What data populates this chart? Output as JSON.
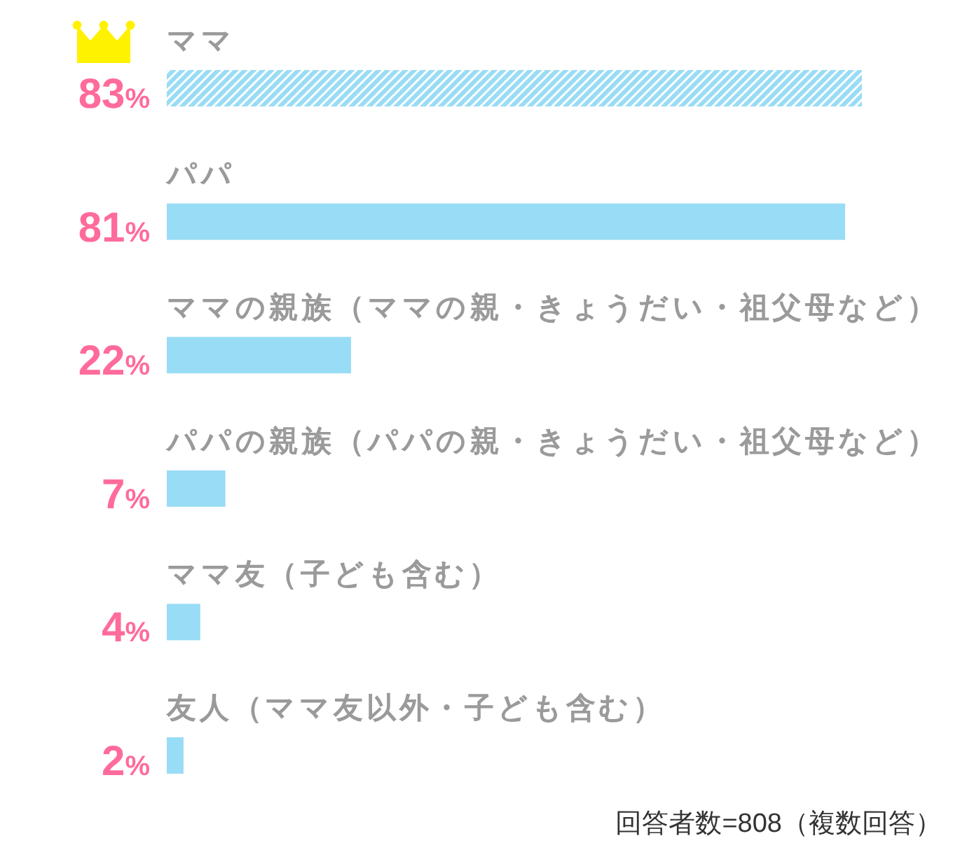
{
  "chart_data": {
    "type": "bar",
    "orientation": "horizontal",
    "categories": [
      "ママ",
      "パパ",
      "ママの親族（ママの親・きょうだい・祖父母など）",
      "パパの親族（パパの親・きょうだい・祖父母など）",
      "ママ友（子ども含む）",
      "友人（ママ友以外・子ども含む）"
    ],
    "values": [
      83,
      81,
      22,
      7,
      4,
      2
    ],
    "value_labels": [
      "83%",
      "81%",
      "22%",
      "7%",
      "4%",
      "2%"
    ],
    "color": "#99dcf5",
    "annotations": [
      "回答者数=808（複数回答）"
    ]
  }
}
